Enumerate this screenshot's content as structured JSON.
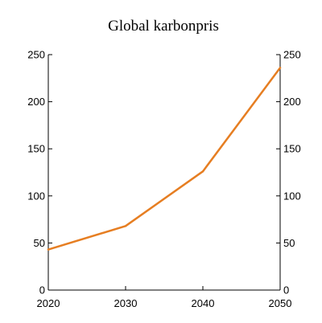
{
  "chart_data": {
    "type": "line",
    "title": "Global karbonpris",
    "xlabel": "",
    "ylabel": "",
    "x": [
      2020,
      2030,
      2040,
      2050
    ],
    "xlim": [
      2020,
      2050
    ],
    "xticks": [
      2020,
      2030,
      2040,
      2050
    ],
    "ylim": [
      0,
      250
    ],
    "yticks": [
      0,
      50,
      100,
      150,
      200,
      250
    ],
    "secondary_y_axis": true,
    "grid": false,
    "legend": "none",
    "series": [
      {
        "values": [
          43,
          68,
          126,
          236
        ],
        "color": "#e67e22"
      }
    ],
    "axis_color": "#000000"
  }
}
